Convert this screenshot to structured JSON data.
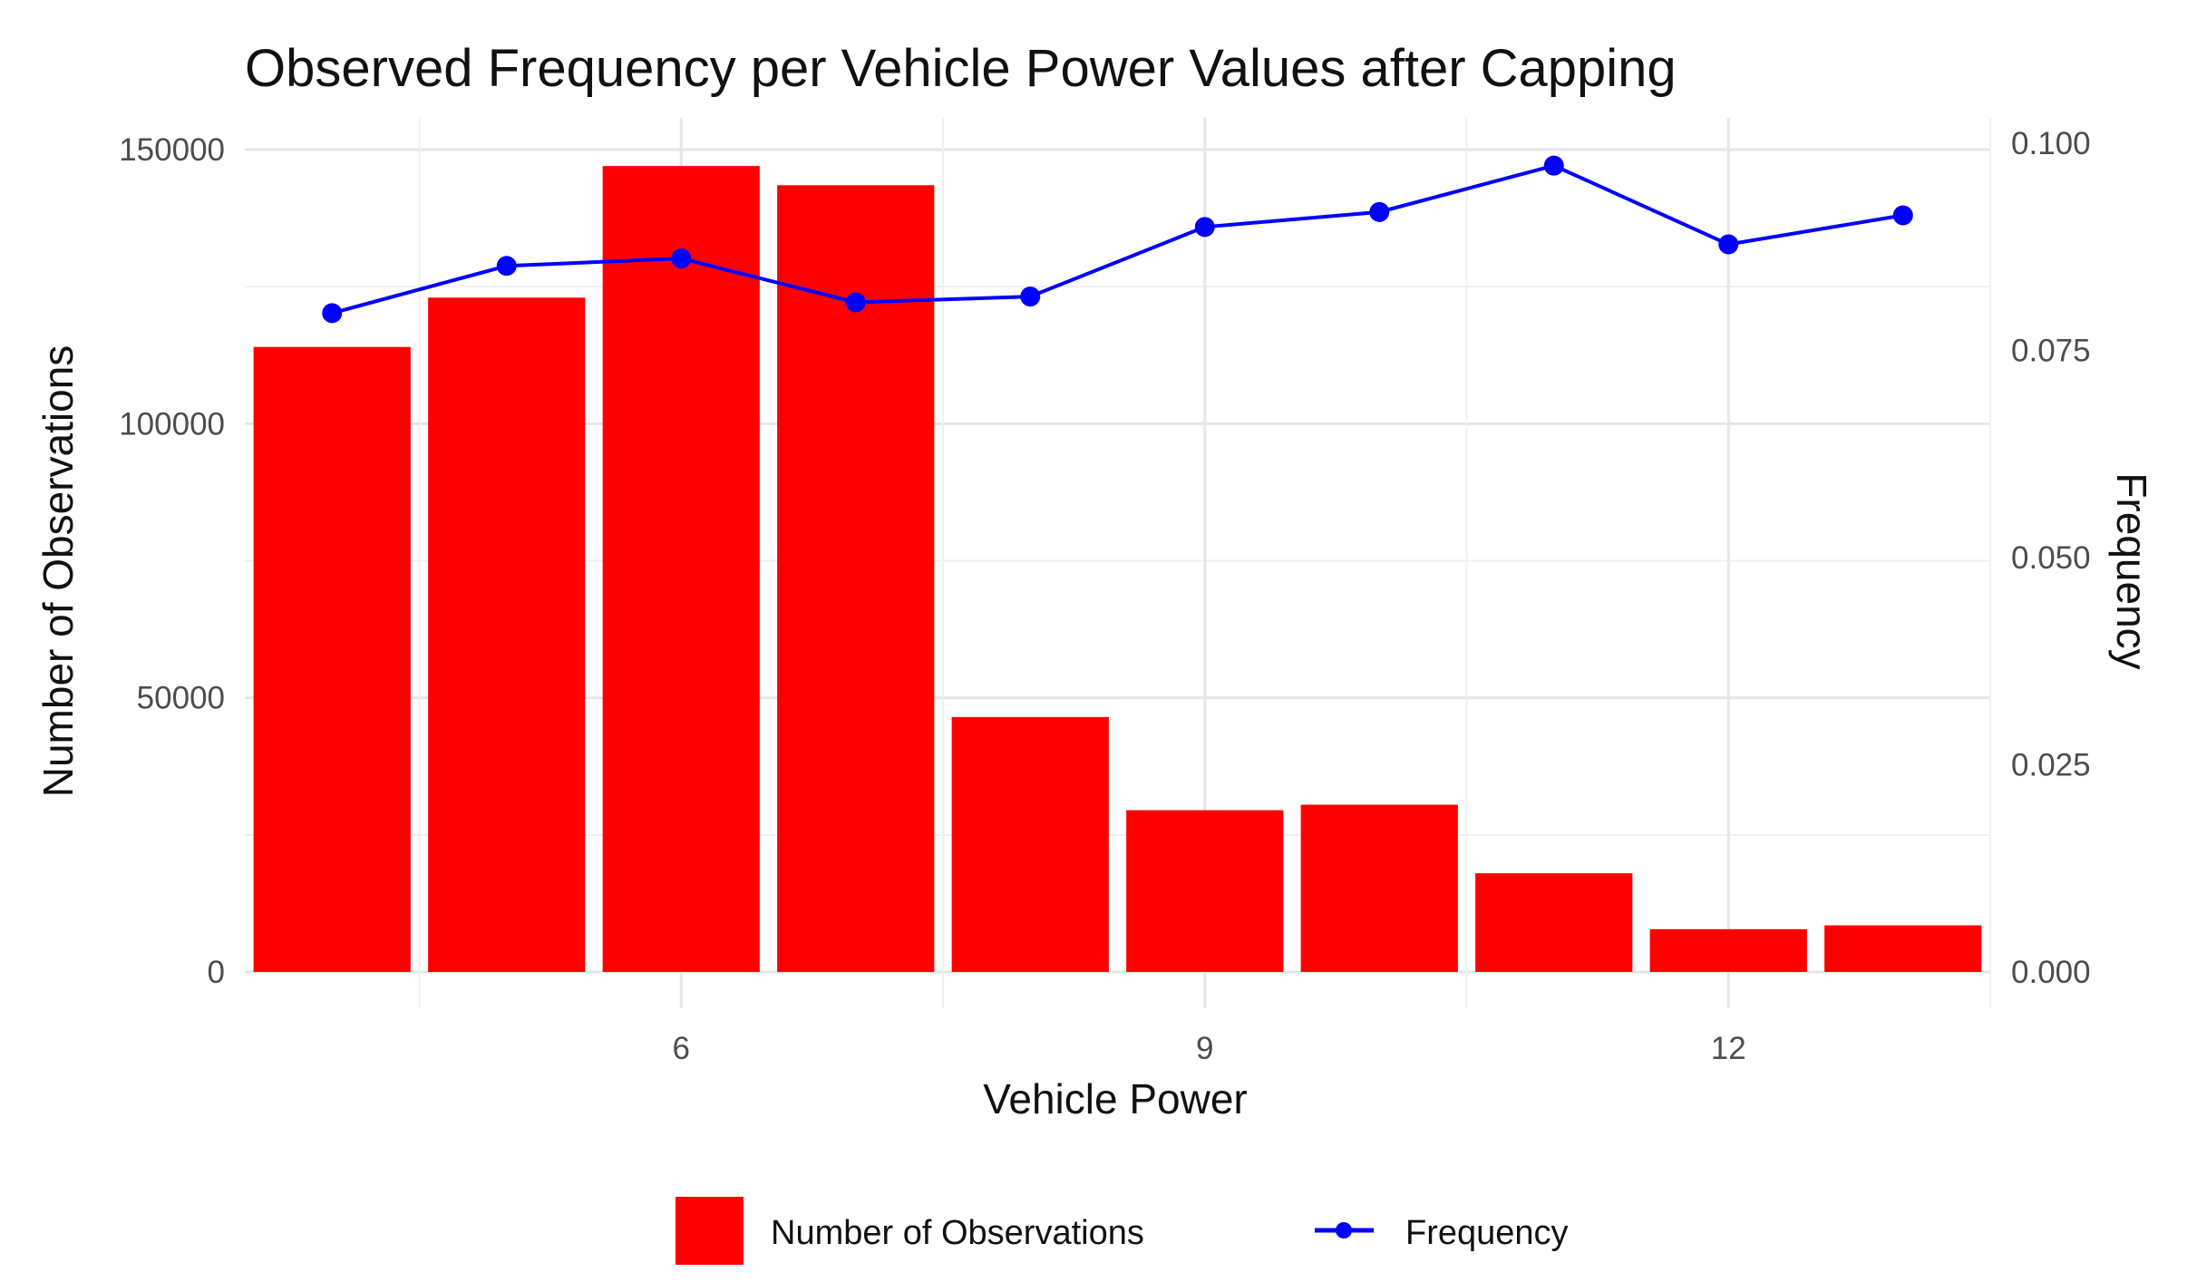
{
  "chart_data": {
    "type": "bar",
    "title": "Observed Frequency per Vehicle Power Values after Capping",
    "xlabel": "Vehicle Power",
    "ylabel": "Number of Observations",
    "y2label": "Frequency",
    "x": [
      4,
      5,
      6,
      7,
      8,
      9,
      10,
      11,
      12,
      13
    ],
    "xlim": [
      3.5,
      13.5
    ],
    "x_ticks": [
      6,
      9,
      12
    ],
    "x_tick_labels": [
      "6",
      "9",
      "12"
    ],
    "ylim": [
      0,
      150000
    ],
    "y_ticks": [
      0,
      50000,
      100000,
      150000
    ],
    "y_tick_labels": [
      "0",
      "50000",
      "100000",
      "150000"
    ],
    "y2lim": [
      0,
      0.1
    ],
    "y2_ticks": [
      0,
      0.025,
      0.05,
      0.075,
      0.1
    ],
    "y2_tick_labels": [
      "0.000",
      "0.025",
      "0.050",
      "0.075",
      "0.100"
    ],
    "grid": true,
    "legend_position": "bottom",
    "series": [
      {
        "name": "Number of Observations",
        "type": "bar",
        "color": "#ff0000",
        "values": [
          114000,
          123000,
          147000,
          143500,
          46500,
          29500,
          30500,
          18000,
          7800,
          8500
        ]
      },
      {
        "name": "Frequency",
        "type": "line",
        "axis": "secondary",
        "color": "#0000ff",
        "values": [
          0.0795,
          0.0852,
          0.0861,
          0.0808,
          0.0815,
          0.0899,
          0.0917,
          0.0973,
          0.0878,
          0.0913
        ]
      }
    ]
  }
}
